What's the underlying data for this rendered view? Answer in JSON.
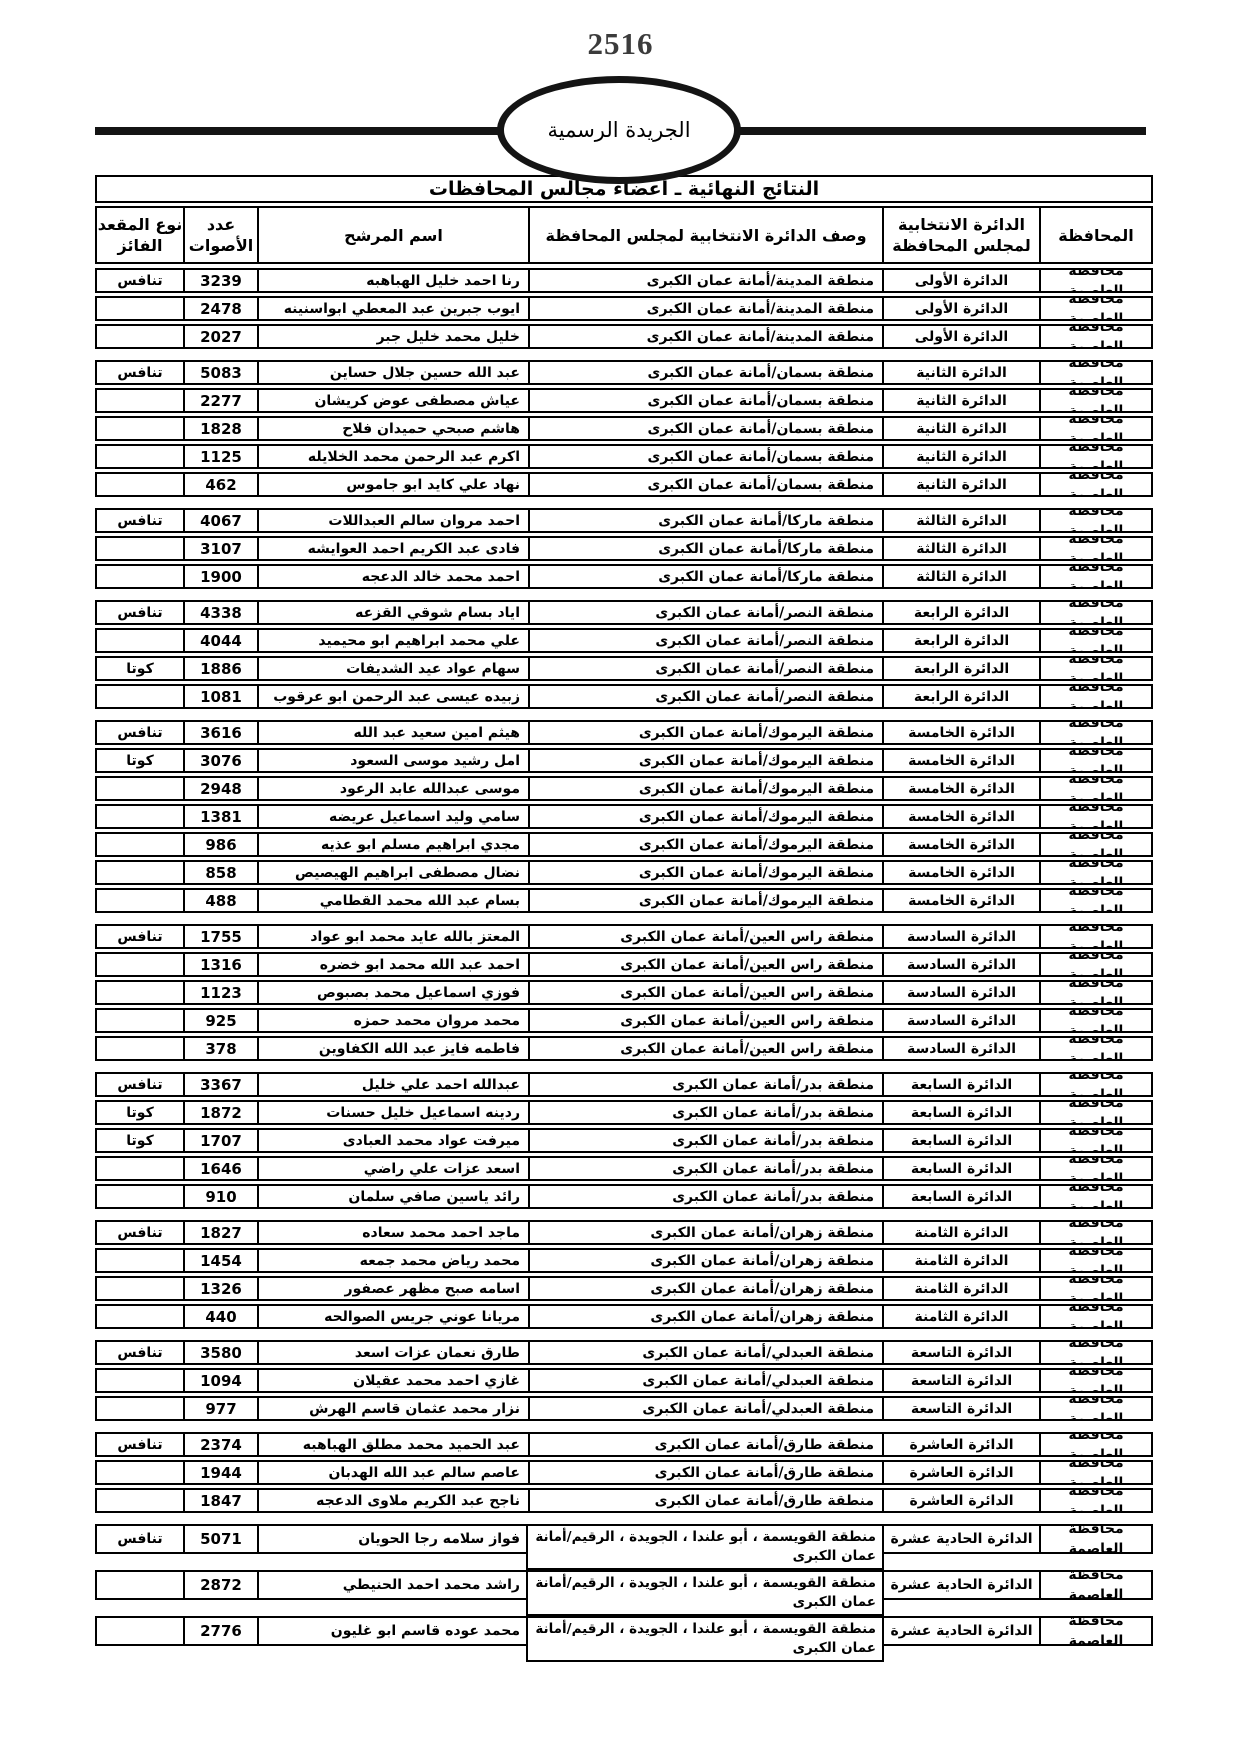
{
  "page": {
    "number": "2516",
    "emblem_text": "الجريدة الرسمية"
  },
  "table": {
    "title": "النتائج النهائية ـ أعضاء مجالس المحافظات",
    "headers": {
      "governorate": "المحافظة",
      "district": "الدائرة الانتخابية\nلمجلس المحافظة",
      "district_desc": "وصف الدائرة الانتخابية لمجلس المحافظة",
      "candidate": "اسم المرشح",
      "votes": "عدد\nالأصوات",
      "seat_type": "نوع المقعد\nالفائز"
    },
    "groups": [
      {
        "governorate": "محافظة العاصمة",
        "district": "الدائرة الأولى",
        "description": "منطقة المدينة/أمانة عمان الكبرى",
        "tall": false,
        "rows": [
          {
            "name": "رنا احمد خليل الهباهبه",
            "votes": "3239",
            "seat": "تنافس"
          },
          {
            "name": "ايوب جبرين عبد المعطي ابواسنينه",
            "votes": "2478",
            "seat": ""
          },
          {
            "name": "خليل محمد خليل جبر",
            "votes": "2027",
            "seat": ""
          }
        ]
      },
      {
        "governorate": "محافظة العاصمة",
        "district": "الدائرة الثانية",
        "description": "منطقة بسمان/أمانة عمان الكبرى",
        "tall": false,
        "rows": [
          {
            "name": "عبد الله حسين جلال حساين",
            "votes": "5083",
            "seat": "تنافس"
          },
          {
            "name": "عياش مصطفى عوض كريشان",
            "votes": "2277",
            "seat": ""
          },
          {
            "name": "هاشم صبحي حميدان فلاح",
            "votes": "1828",
            "seat": ""
          },
          {
            "name": "اكرم عبد الرحمن محمد الخلايله",
            "votes": "1125",
            "seat": ""
          },
          {
            "name": "نهاد علي كايد ابو جاموس",
            "votes": "462",
            "seat": ""
          }
        ]
      },
      {
        "governorate": "محافظة العاصمة",
        "district": "الدائرة الثالثة",
        "description": "منطقة ماركا/أمانة عمان الكبرى",
        "tall": false,
        "rows": [
          {
            "name": "احمد مروان سالم العبداللات",
            "votes": "4067",
            "seat": "تنافس"
          },
          {
            "name": "فادى عبد  الكريم احمد العوايشه",
            "votes": "3107",
            "seat": ""
          },
          {
            "name": "احمد محمد خالد الدعجه",
            "votes": "1900",
            "seat": ""
          }
        ]
      },
      {
        "governorate": "محافظة العاصمة",
        "district": "الدائرة الرابعة",
        "description": "منطقة النصر/أمانة عمان الكبرى",
        "tall": false,
        "rows": [
          {
            "name": "اياد بسام شوقي القزعه",
            "votes": "4338",
            "seat": "تنافس"
          },
          {
            "name": "علي محمد ابراهيم ابو محيميد",
            "votes": "4044",
            "seat": ""
          },
          {
            "name": "سهام عواد عيد الشديفات",
            "votes": "1886",
            "seat": "كوتا"
          },
          {
            "name": "زبيده عيسى عبد الرحمن ابو عرقوب",
            "votes": "1081",
            "seat": ""
          }
        ]
      },
      {
        "governorate": "محافظة العاصمة",
        "district": "الدائرة الخامسة",
        "description": "منطقة اليرموك/أمانة عمان الكبرى",
        "tall": false,
        "rows": [
          {
            "name": "هيثم امين سعيد عبد الله",
            "votes": "3616",
            "seat": "تنافس"
          },
          {
            "name": "امل رشيد موسى السعود",
            "votes": "3076",
            "seat": "كوتا"
          },
          {
            "name": "موسى عبدالله عابد الرعود",
            "votes": "2948",
            "seat": ""
          },
          {
            "name": "سامي وليد اسماعيل عريضه",
            "votes": "1381",
            "seat": ""
          },
          {
            "name": "مجدي ابراهيم مسلم ابو عذيه",
            "votes": "986",
            "seat": ""
          },
          {
            "name": "نضال مصطفى ابراهيم الهيصيص",
            "votes": "858",
            "seat": ""
          },
          {
            "name": "بسام عبد الله محمد القطامي",
            "votes": "488",
            "seat": ""
          }
        ]
      },
      {
        "governorate": "محافظة العاصمة",
        "district": "الدائرة السادسة",
        "description": "منطقة راس العين/أمانة عمان الكبرى",
        "tall": false,
        "rows": [
          {
            "name": "المعتز بالله عايد محمد ابو عواد",
            "votes": "1755",
            "seat": "تنافس"
          },
          {
            "name": "احمد عبد الله محمد ابو خضره",
            "votes": "1316",
            "seat": ""
          },
          {
            "name": "فوزي اسماعيل محمد بصبوص",
            "votes": "1123",
            "seat": ""
          },
          {
            "name": "محمد مروان محمد حمزه",
            "votes": "925",
            "seat": ""
          },
          {
            "name": "فاطمه فايز عبد الله الكفاوين",
            "votes": "378",
            "seat": ""
          }
        ]
      },
      {
        "governorate": "محافظة العاصمة",
        "district": "الدائرة السابعة",
        "description": "منطقة بدر/أمانة عمان الكبرى",
        "tall": false,
        "rows": [
          {
            "name": "عبدالله احمد علي خليل",
            "votes": "3367",
            "seat": "تنافس"
          },
          {
            "name": "ردينه اسماعيل خليل حسنات",
            "votes": "1872",
            "seat": "كوتا"
          },
          {
            "name": "ميرفت عواد محمد العبادى",
            "votes": "1707",
            "seat": "كوتا"
          },
          {
            "name": "اسعد عزات علي راضي",
            "votes": "1646",
            "seat": ""
          },
          {
            "name": "رائد ياسين صافي سلمان",
            "votes": "910",
            "seat": ""
          }
        ]
      },
      {
        "governorate": "محافظة العاصمة",
        "district": "الدائرة الثامنة",
        "description": "منطقة زهران/أمانة عمان الكبرى",
        "tall": false,
        "rows": [
          {
            "name": "ماجد احمد محمد سعاده",
            "votes": "1827",
            "seat": "تنافس"
          },
          {
            "name": "محمد رياض محمد جمعه",
            "votes": "1454",
            "seat": ""
          },
          {
            "name": "اسامه صبح مظهر عصفور",
            "votes": "1326",
            "seat": ""
          },
          {
            "name": "مريانا عوني جريس الصوالحه",
            "votes": "440",
            "seat": ""
          }
        ]
      },
      {
        "governorate": "محافظة العاصمة",
        "district": "الدائرة التاسعة",
        "description": "منطقة العبدلي/أمانة عمان الكبرى",
        "tall": false,
        "rows": [
          {
            "name": "طارق نعمان عزات اسعد",
            "votes": "3580",
            "seat": "تنافس"
          },
          {
            "name": "غازي احمد محمد عقيلان",
            "votes": "1094",
            "seat": ""
          },
          {
            "name": "نزار محمد عثمان قاسم الهرش",
            "votes": "977",
            "seat": ""
          }
        ]
      },
      {
        "governorate": "محافظة العاصمة",
        "district": "الدائرة العاشرة",
        "description": "منطقة طارق/أمانة عمان الكبرى",
        "tall": false,
        "rows": [
          {
            "name": "عبد الحميد محمد مطلق الهباهبه",
            "votes": "2374",
            "seat": "تنافس"
          },
          {
            "name": "عاصم سالم عبد الله الهدبان",
            "votes": "1944",
            "seat": ""
          },
          {
            "name": "ناجح عبد الكريم ملاوى الدعجه",
            "votes": "1847",
            "seat": ""
          }
        ]
      },
      {
        "governorate": "محافظة العاصمة",
        "district": "الدائرة الحادية عشرة",
        "description": "منطقة القويسمة ، أبو علندا ، الجويدة ، الرقيم/أمانة عمان الكبرى",
        "tall": true,
        "rows": [
          {
            "name": "فواز سلامه رجا الحويان",
            "votes": "5071",
            "seat": "تنافس"
          },
          {
            "name": "راشد محمد احمد الحنيطي",
            "votes": "2872",
            "seat": ""
          },
          {
            "name": "محمد عوده قاسم ابو غليون",
            "votes": "2776",
            "seat": ""
          }
        ]
      }
    ]
  }
}
